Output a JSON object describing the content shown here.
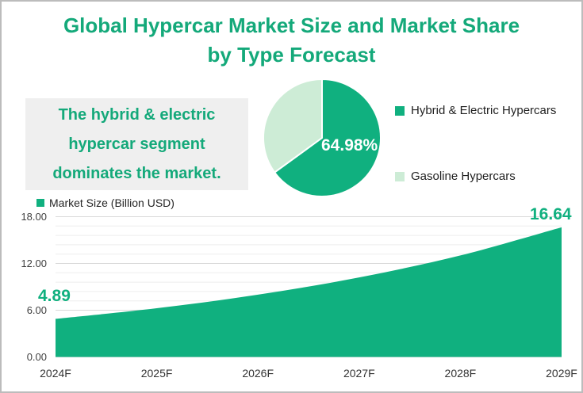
{
  "title": {
    "line1": "Global Hypercar Market Size and Market Share",
    "line2": "by Type Forecast"
  },
  "annotation": {
    "lines": [
      "The hybrid & electric",
      "hypercar segment",
      "dominates the market."
    ]
  },
  "colors": {
    "accent": "#10b07f",
    "accent_light": "#cdecd6",
    "title_green": "#14a97a",
    "annotation_bg": "#efefef",
    "grid_major": "#d9d9d9",
    "grid_minor": "#ededed",
    "axis_text": "#404040",
    "frame_border": "#bcbcbc",
    "pie_label_text": "#ffffff"
  },
  "chart_data": [
    {
      "type": "pie",
      "labels": [
        "Hybrid & Electric Hypercars",
        "Gasoline Hypercars"
      ],
      "values": [
        64.98,
        35.02
      ],
      "colors": [
        "#10b07f",
        "#cdecd6"
      ],
      "data_label": "64.98%",
      "start_angle_deg": 0,
      "legend_position": "right"
    },
    {
      "type": "area",
      "series_name": "Market Size (Billion USD)",
      "categories": [
        "2024F",
        "2025F",
        "2026F",
        "2027F",
        "2028F",
        "2029F"
      ],
      "values": [
        4.89,
        6.25,
        7.99,
        10.21,
        13.03,
        16.64
      ],
      "labeled_points": {
        "first": "4.89",
        "last": "16.64"
      },
      "ylim": [
        0,
        18
      ],
      "yticks": [
        {
          "value": 0,
          "label": "0.00"
        },
        {
          "value": 6,
          "label": "6.00"
        },
        {
          "value": 12,
          "label": "12.00"
        },
        {
          "value": 18,
          "label": "18.00"
        }
      ],
      "grid": true,
      "minor_grid_step": 1.2,
      "legend_position": "top-left"
    }
  ]
}
